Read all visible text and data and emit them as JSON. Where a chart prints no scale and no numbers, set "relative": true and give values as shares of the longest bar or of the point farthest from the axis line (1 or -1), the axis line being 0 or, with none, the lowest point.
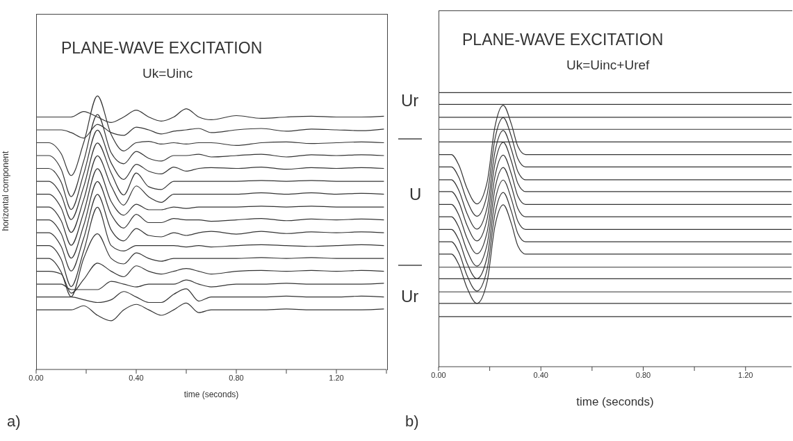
{
  "chart_data": [
    {
      "type": "line",
      "title": "PLANE-WAVE EXCITATION",
      "subtitle": "Uk=Uinc",
      "xlabel": "time (seconds)",
      "ylabel": "horizontal component",
      "annotations": [
        "a)"
      ],
      "relative": true,
      "line_style": "solid",
      "xlim": [
        0,
        1.4
      ],
      "xticks": [
        {
          "value": 0,
          "label": "0.00"
        },
        {
          "value": 0.2,
          "label": null
        },
        {
          "value": 0.4,
          "label": "0.40"
        },
        {
          "value": 0.6,
          "label": null
        },
        {
          "value": 0.8,
          "label": "0.80"
        },
        {
          "value": 1.0,
          "label": null
        },
        {
          "value": 1.2,
          "label": "1.20"
        },
        {
          "value": 1.4,
          "label": null
        }
      ],
      "x": [
        0,
        0.05,
        0.1,
        0.14,
        0.19,
        0.245,
        0.3,
        0.35,
        0.4,
        0.45,
        0.5,
        0.55,
        0.6,
        0.65,
        0.7,
        0.8,
        0.9,
        1.0,
        1.1,
        1.2,
        1.3,
        1.39
      ],
      "series": [
        {
          "color": "#333333",
          "values": [
            0.923,
            0.923,
            0.923,
            0.923,
            0.943,
            0.923,
            0.903,
            0.923,
            0.948,
            0.923,
            0.908,
            0.923,
            0.953,
            0.923,
            0.913,
            0.928,
            0.918,
            0.923,
            0.926,
            0.923,
            0.923,
            0.926
          ]
        },
        {
          "color": "#333333",
          "values": [
            0.876,
            0.876,
            0.876,
            0.866,
            0.846,
            0.896,
            0.866,
            0.856,
            0.886,
            0.876,
            0.861,
            0.871,
            0.876,
            0.881,
            0.866,
            0.876,
            0.881,
            0.871,
            0.879,
            0.876,
            0.873,
            0.879
          ]
        },
        {
          "color": "#333333",
          "values": [
            0.829,
            0.829,
            0.789,
            0.709,
            0.829,
            1.0,
            0.859,
            0.799,
            0.829,
            0.834,
            0.824,
            0.829,
            0.824,
            0.829,
            0.829,
            0.819,
            0.829,
            0.832,
            0.826,
            0.829,
            0.832,
            0.829
          ]
        },
        {
          "color": "#333333",
          "values": [
            0.782,
            0.782,
            0.732,
            0.632,
            0.762,
            0.932,
            0.792,
            0.752,
            0.797,
            0.772,
            0.762,
            0.782,
            0.782,
            0.787,
            0.777,
            0.782,
            0.787,
            0.777,
            0.785,
            0.782,
            0.785,
            0.782
          ]
        },
        {
          "color": "#333333",
          "values": [
            0.735,
            0.735,
            0.685,
            0.585,
            0.715,
            0.875,
            0.755,
            0.695,
            0.75,
            0.725,
            0.715,
            0.74,
            0.725,
            0.735,
            0.738,
            0.735,
            0.74,
            0.732,
            0.738,
            0.735,
            0.738,
            0.735
          ]
        },
        {
          "color": "#333333",
          "values": [
            0.688,
            0.688,
            0.638,
            0.548,
            0.668,
            0.828,
            0.718,
            0.638,
            0.718,
            0.668,
            0.658,
            0.688,
            0.688,
            0.688,
            0.688,
            0.688,
            0.691,
            0.688,
            0.691,
            0.688,
            0.688,
            0.688
          ]
        },
        {
          "color": "#333333",
          "values": [
            0.641,
            0.641,
            0.591,
            0.501,
            0.621,
            0.781,
            0.671,
            0.601,
            0.671,
            0.631,
            0.611,
            0.641,
            0.641,
            0.641,
            0.641,
            0.641,
            0.646,
            0.641,
            0.646,
            0.641,
            0.644,
            0.641
          ]
        },
        {
          "color": "#333333",
          "values": [
            0.594,
            0.594,
            0.544,
            0.454,
            0.574,
            0.734,
            0.614,
            0.564,
            0.604,
            0.584,
            0.584,
            0.594,
            0.589,
            0.594,
            0.594,
            0.594,
            0.597,
            0.594,
            0.597,
            0.594,
            0.594,
            0.594
          ]
        },
        {
          "color": "#333333",
          "values": [
            0.547,
            0.547,
            0.497,
            0.407,
            0.527,
            0.687,
            0.567,
            0.517,
            0.567,
            0.537,
            0.537,
            0.552,
            0.547,
            0.547,
            0.542,
            0.547,
            0.552,
            0.544,
            0.55,
            0.547,
            0.55,
            0.547
          ]
        },
        {
          "color": "#333333",
          "values": [
            0.5,
            0.5,
            0.45,
            0.36,
            0.48,
            0.64,
            0.51,
            0.47,
            0.515,
            0.49,
            0.485,
            0.5,
            0.49,
            0.5,
            0.505,
            0.495,
            0.505,
            0.497,
            0.503,
            0.5,
            0.503,
            0.5
          ]
        },
        {
          "color": "#333333",
          "values": [
            0.453,
            0.453,
            0.403,
            0.303,
            0.433,
            0.593,
            0.453,
            0.433,
            0.453,
            0.453,
            0.453,
            0.453,
            0.448,
            0.453,
            0.448,
            0.453,
            0.456,
            0.453,
            0.45,
            0.453,
            0.456,
            0.453
          ]
        },
        {
          "color": "#333333",
          "values": [
            0.406,
            0.406,
            0.356,
            0.266,
            0.406,
            0.496,
            0.406,
            0.386,
            0.426,
            0.406,
            0.396,
            0.406,
            0.406,
            0.406,
            0.406,
            0.406,
            0.409,
            0.406,
            0.409,
            0.406,
            0.406,
            0.406
          ]
        },
        {
          "color": "#333333",
          "values": [
            0.359,
            0.359,
            0.349,
            0.279,
            0.329,
            0.389,
            0.359,
            0.339,
            0.379,
            0.359,
            0.349,
            0.359,
            0.369,
            0.359,
            0.349,
            0.359,
            0.362,
            0.359,
            0.362,
            0.359,
            0.362,
            0.359
          ]
        },
        {
          "color": "#333333",
          "values": [
            0.312,
            0.312,
            0.312,
            0.292,
            0.292,
            0.292,
            0.322,
            0.312,
            0.302,
            0.312,
            0.312,
            0.312,
            0.327,
            0.312,
            0.302,
            0.312,
            0.312,
            0.315,
            0.312,
            0.312,
            0.312,
            0.315
          ]
        },
        {
          "color": "#333333",
          "values": [
            0.265,
            0.265,
            0.265,
            0.265,
            0.255,
            0.245,
            0.255,
            0.285,
            0.265,
            0.245,
            0.245,
            0.275,
            0.295,
            0.25,
            0.265,
            0.265,
            0.265,
            0.268,
            0.265,
            0.265,
            0.268,
            0.265
          ]
        },
        {
          "color": "#333333",
          "values": [
            0.218,
            0.218,
            0.218,
            0.218,
            0.233,
            0.198,
            0.178,
            0.218,
            0.238,
            0.218,
            0.198,
            0.218,
            0.243,
            0.208,
            0.218,
            0.218,
            0.218,
            0.221,
            0.218,
            0.218,
            0.218,
            0.221
          ]
        }
      ]
    },
    {
      "type": "line",
      "title": "PLANE-WAVE EXCITATION",
      "subtitle": "Uk=Uinc+Uref",
      "xlabel": "time (seconds)",
      "annotations": [
        "Ur",
        "U",
        "Ur",
        "b)"
      ],
      "relative": true,
      "line_style": "solid",
      "xlim": [
        0,
        1.38
      ],
      "xticks": [
        {
          "value": 0,
          "label": "0.00"
        },
        {
          "value": 0.2,
          "label": null
        },
        {
          "value": 0.4,
          "label": "0.40"
        },
        {
          "value": 0.6,
          "label": null
        },
        {
          "value": 0.8,
          "label": "0.80"
        },
        {
          "value": 1.0,
          "label": null
        },
        {
          "value": 1.2,
          "label": "1.20"
        }
      ],
      "x": [
        0,
        0.05,
        0.08,
        0.11,
        0.15,
        0.19,
        0.22,
        0.253,
        0.285,
        0.31,
        0.34,
        1.38
      ],
      "series": [
        {
          "color": "#333333",
          "values": [
            1.0,
            1.0,
            1.0,
            1.0,
            1.0,
            1.0,
            1.0,
            1.0,
            1.0,
            1.0,
            1.0,
            1.0
          ]
        },
        {
          "color": "#333333",
          "values": [
            0.957,
            0.957,
            0.957,
            0.957,
            0.957,
            0.957,
            0.957,
            0.957,
            0.957,
            0.957,
            0.957,
            0.957
          ]
        },
        {
          "color": "#333333",
          "values": [
            0.91,
            0.91,
            0.91,
            0.91,
            0.91,
            0.91,
            0.91,
            0.91,
            0.91,
            0.91,
            0.91,
            0.91
          ]
        },
        {
          "color": "#333333",
          "values": [
            0.866,
            0.866,
            0.866,
            0.866,
            0.866,
            0.866,
            0.866,
            0.866,
            0.866,
            0.866,
            0.866,
            0.866
          ]
        },
        {
          "color": "#333333",
          "values": [
            0.82,
            0.82,
            0.82,
            0.82,
            0.82,
            0.82,
            0.82,
            0.82,
            0.82,
            0.82,
            0.82,
            0.82
          ]
        },
        {
          "color": "#333333",
          "values": [
            0.774,
            0.774,
            0.734,
            0.654,
            0.594,
            0.674,
            0.874,
            0.954,
            0.884,
            0.804,
            0.774,
            0.774
          ]
        },
        {
          "color": "#333333",
          "values": [
            0.729,
            0.729,
            0.689,
            0.609,
            0.549,
            0.629,
            0.829,
            0.909,
            0.839,
            0.759,
            0.729,
            0.729
          ]
        },
        {
          "color": "#333333",
          "values": [
            0.682,
            0.682,
            0.642,
            0.562,
            0.502,
            0.582,
            0.782,
            0.862,
            0.792,
            0.712,
            0.682,
            0.682
          ]
        },
        {
          "color": "#333333",
          "values": [
            0.639,
            0.639,
            0.599,
            0.519,
            0.459,
            0.539,
            0.739,
            0.819,
            0.749,
            0.669,
            0.639,
            0.639
          ]
        },
        {
          "color": "#333333",
          "values": [
            0.592,
            0.592,
            0.552,
            0.472,
            0.412,
            0.492,
            0.692,
            0.772,
            0.702,
            0.622,
            0.592,
            0.592
          ]
        },
        {
          "color": "#333333",
          "values": [
            0.547,
            0.547,
            0.507,
            0.427,
            0.367,
            0.447,
            0.647,
            0.727,
            0.657,
            0.577,
            0.547,
            0.547
          ]
        },
        {
          "color": "#333333",
          "values": [
            0.501,
            0.501,
            0.461,
            0.381,
            0.321,
            0.401,
            0.601,
            0.681,
            0.611,
            0.531,
            0.501,
            0.501
          ]
        },
        {
          "color": "#333333",
          "values": [
            0.456,
            0.456,
            0.416,
            0.336,
            0.276,
            0.356,
            0.556,
            0.636,
            0.566,
            0.486,
            0.456,
            0.456
          ]
        },
        {
          "color": "#333333",
          "values": [
            0.411,
            0.411,
            0.371,
            0.291,
            0.231,
            0.311,
            0.511,
            0.591,
            0.521,
            0.441,
            0.411,
            0.411
          ]
        },
        {
          "color": "#333333",
          "values": [
            0.363,
            0.363,
            0.363,
            0.363,
            0.363,
            0.363,
            0.363,
            0.363,
            0.363,
            0.363,
            0.363,
            0.363
          ]
        },
        {
          "color": "#333333",
          "values": [
            0.321,
            0.321,
            0.321,
            0.321,
            0.321,
            0.321,
            0.321,
            0.321,
            0.321,
            0.321,
            0.321,
            0.321
          ]
        },
        {
          "color": "#333333",
          "values": [
            0.273,
            0.273,
            0.273,
            0.273,
            0.273,
            0.273,
            0.273,
            0.273,
            0.273,
            0.273,
            0.273,
            0.273
          ]
        },
        {
          "color": "#333333",
          "values": [
            0.231,
            0.231,
            0.231,
            0.231,
            0.231,
            0.231,
            0.231,
            0.231,
            0.231,
            0.231,
            0.231,
            0.231
          ]
        },
        {
          "color": "#333333",
          "values": [
            0.183,
            0.183,
            0.183,
            0.183,
            0.183,
            0.183,
            0.183,
            0.183,
            0.183,
            0.183,
            0.183,
            0.183
          ]
        }
      ]
    }
  ]
}
